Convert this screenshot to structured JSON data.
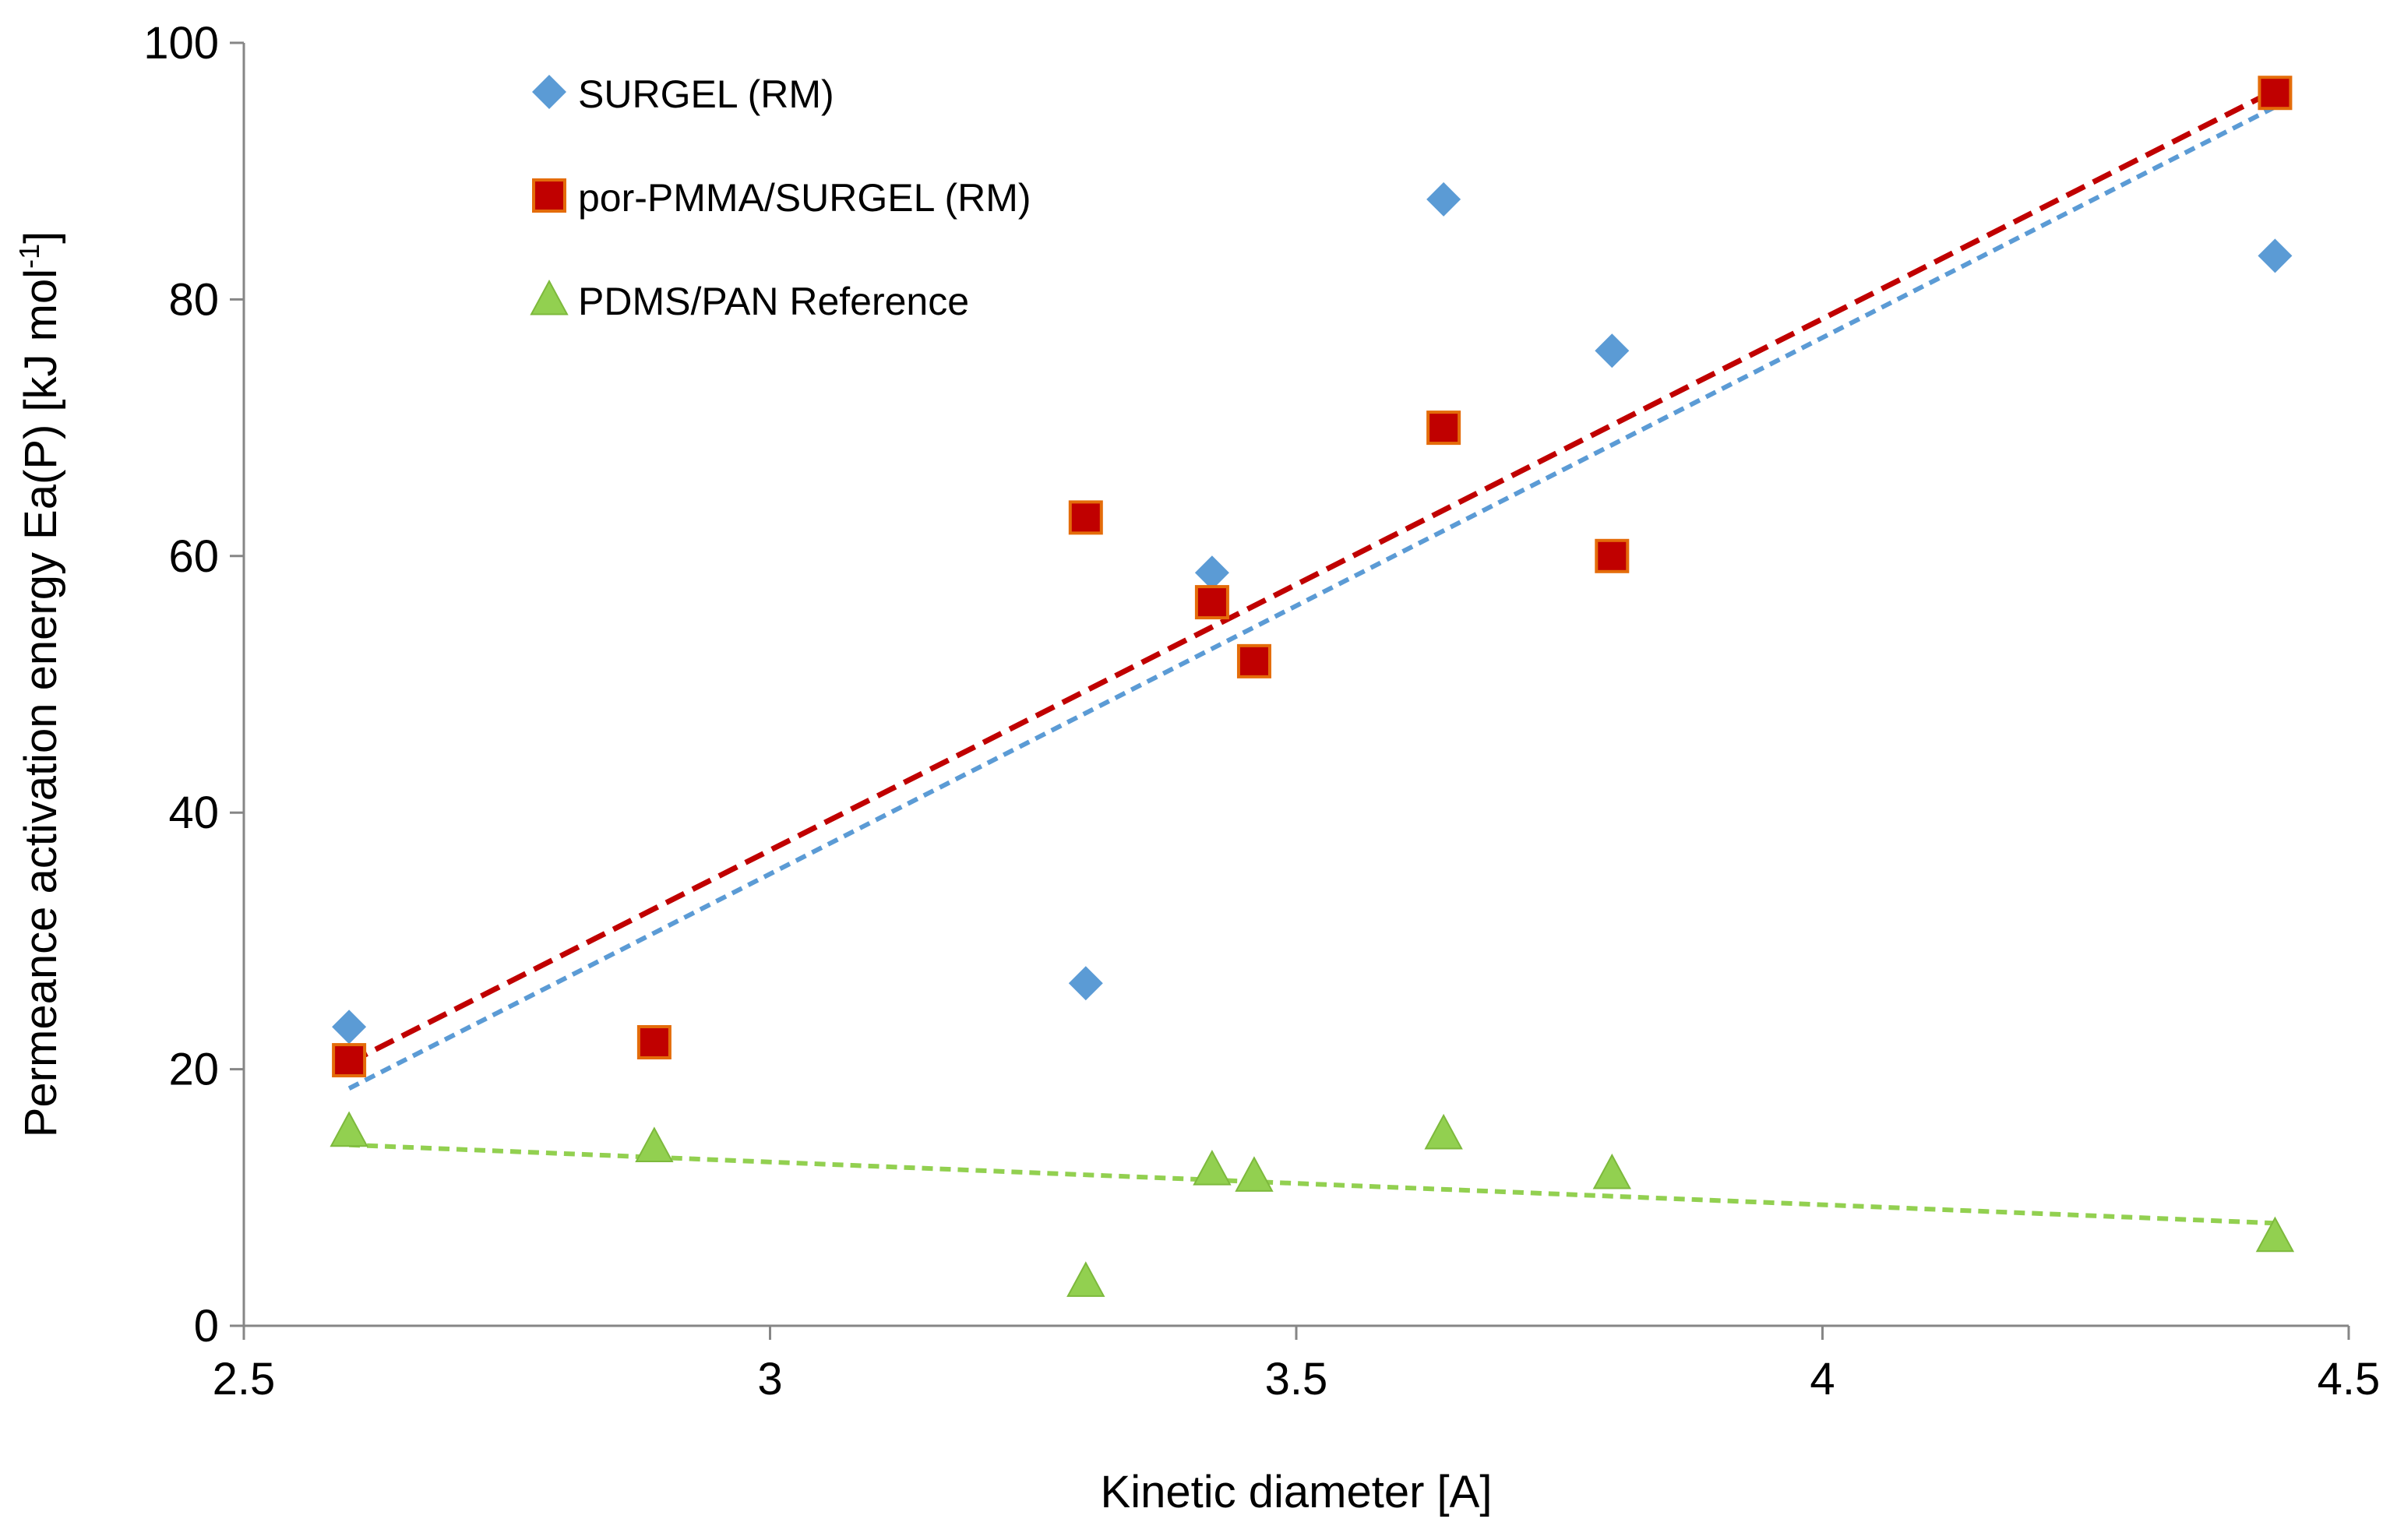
{
  "chart_data": {
    "type": "scatter",
    "title": "",
    "xlabel": "Kinetic diameter [A]",
    "ylabel": {
      "main": "Permeance activation energy Ea(P) [kJ mol",
      "sup": "-1",
      "close": "]"
    },
    "xlim": [
      2.5,
      4.5
    ],
    "ylim": [
      0,
      100
    ],
    "xticks": [
      2.5,
      3,
      3.5,
      4,
      4.5
    ],
    "xtick_labels": [
      "2.5",
      "3",
      "3.5",
      "4",
      "4.5"
    ],
    "yticks": [
      0,
      20,
      40,
      60,
      80,
      100
    ],
    "ytick_labels": [
      "0",
      "20",
      "40",
      "60",
      "80",
      "100"
    ],
    "grid": false,
    "legend_position": "top-left",
    "series": [
      {
        "name": "SURGEL (RM)",
        "marker": "diamond",
        "color": "#5B9BD5",
        "x": [
          2.6,
          3.3,
          3.42,
          3.64,
          3.8,
          4.43
        ],
        "y": [
          23.3,
          26.7,
          58.7,
          87.8,
          76.0,
          83.4
        ],
        "trendline": {
          "x": [
            2.6,
            4.43
          ],
          "y": [
            18.5,
            95.0
          ],
          "color": "#5B9BD5"
        }
      },
      {
        "name": "por-PMMA/SURGEL (RM)",
        "marker": "square",
        "color": "#C00000",
        "edge_color": "#E46C0A",
        "x": [
          2.6,
          2.89,
          3.3,
          3.42,
          3.46,
          3.64,
          3.8,
          4.43
        ],
        "y": [
          20.7,
          22.1,
          63.0,
          56.4,
          51.8,
          70.0,
          60.0,
          96.1
        ],
        "trendline": {
          "x": [
            2.6,
            4.43
          ],
          "y": [
            20.5,
            96.3
          ],
          "color": "#C00000"
        }
      },
      {
        "name": "PDMS/PAN Reference",
        "marker": "triangle",
        "color": "#92D050",
        "x": [
          2.6,
          2.89,
          3.3,
          3.42,
          3.46,
          3.64,
          3.8,
          4.43
        ],
        "y": [
          15.2,
          14.0,
          3.5,
          12.2,
          11.7,
          15.0,
          11.9,
          7.0
        ],
        "trendline": {
          "x": [
            2.6,
            4.43
          ],
          "y": [
            14.1,
            8.0
          ],
          "color": "#92D050"
        }
      }
    ]
  }
}
